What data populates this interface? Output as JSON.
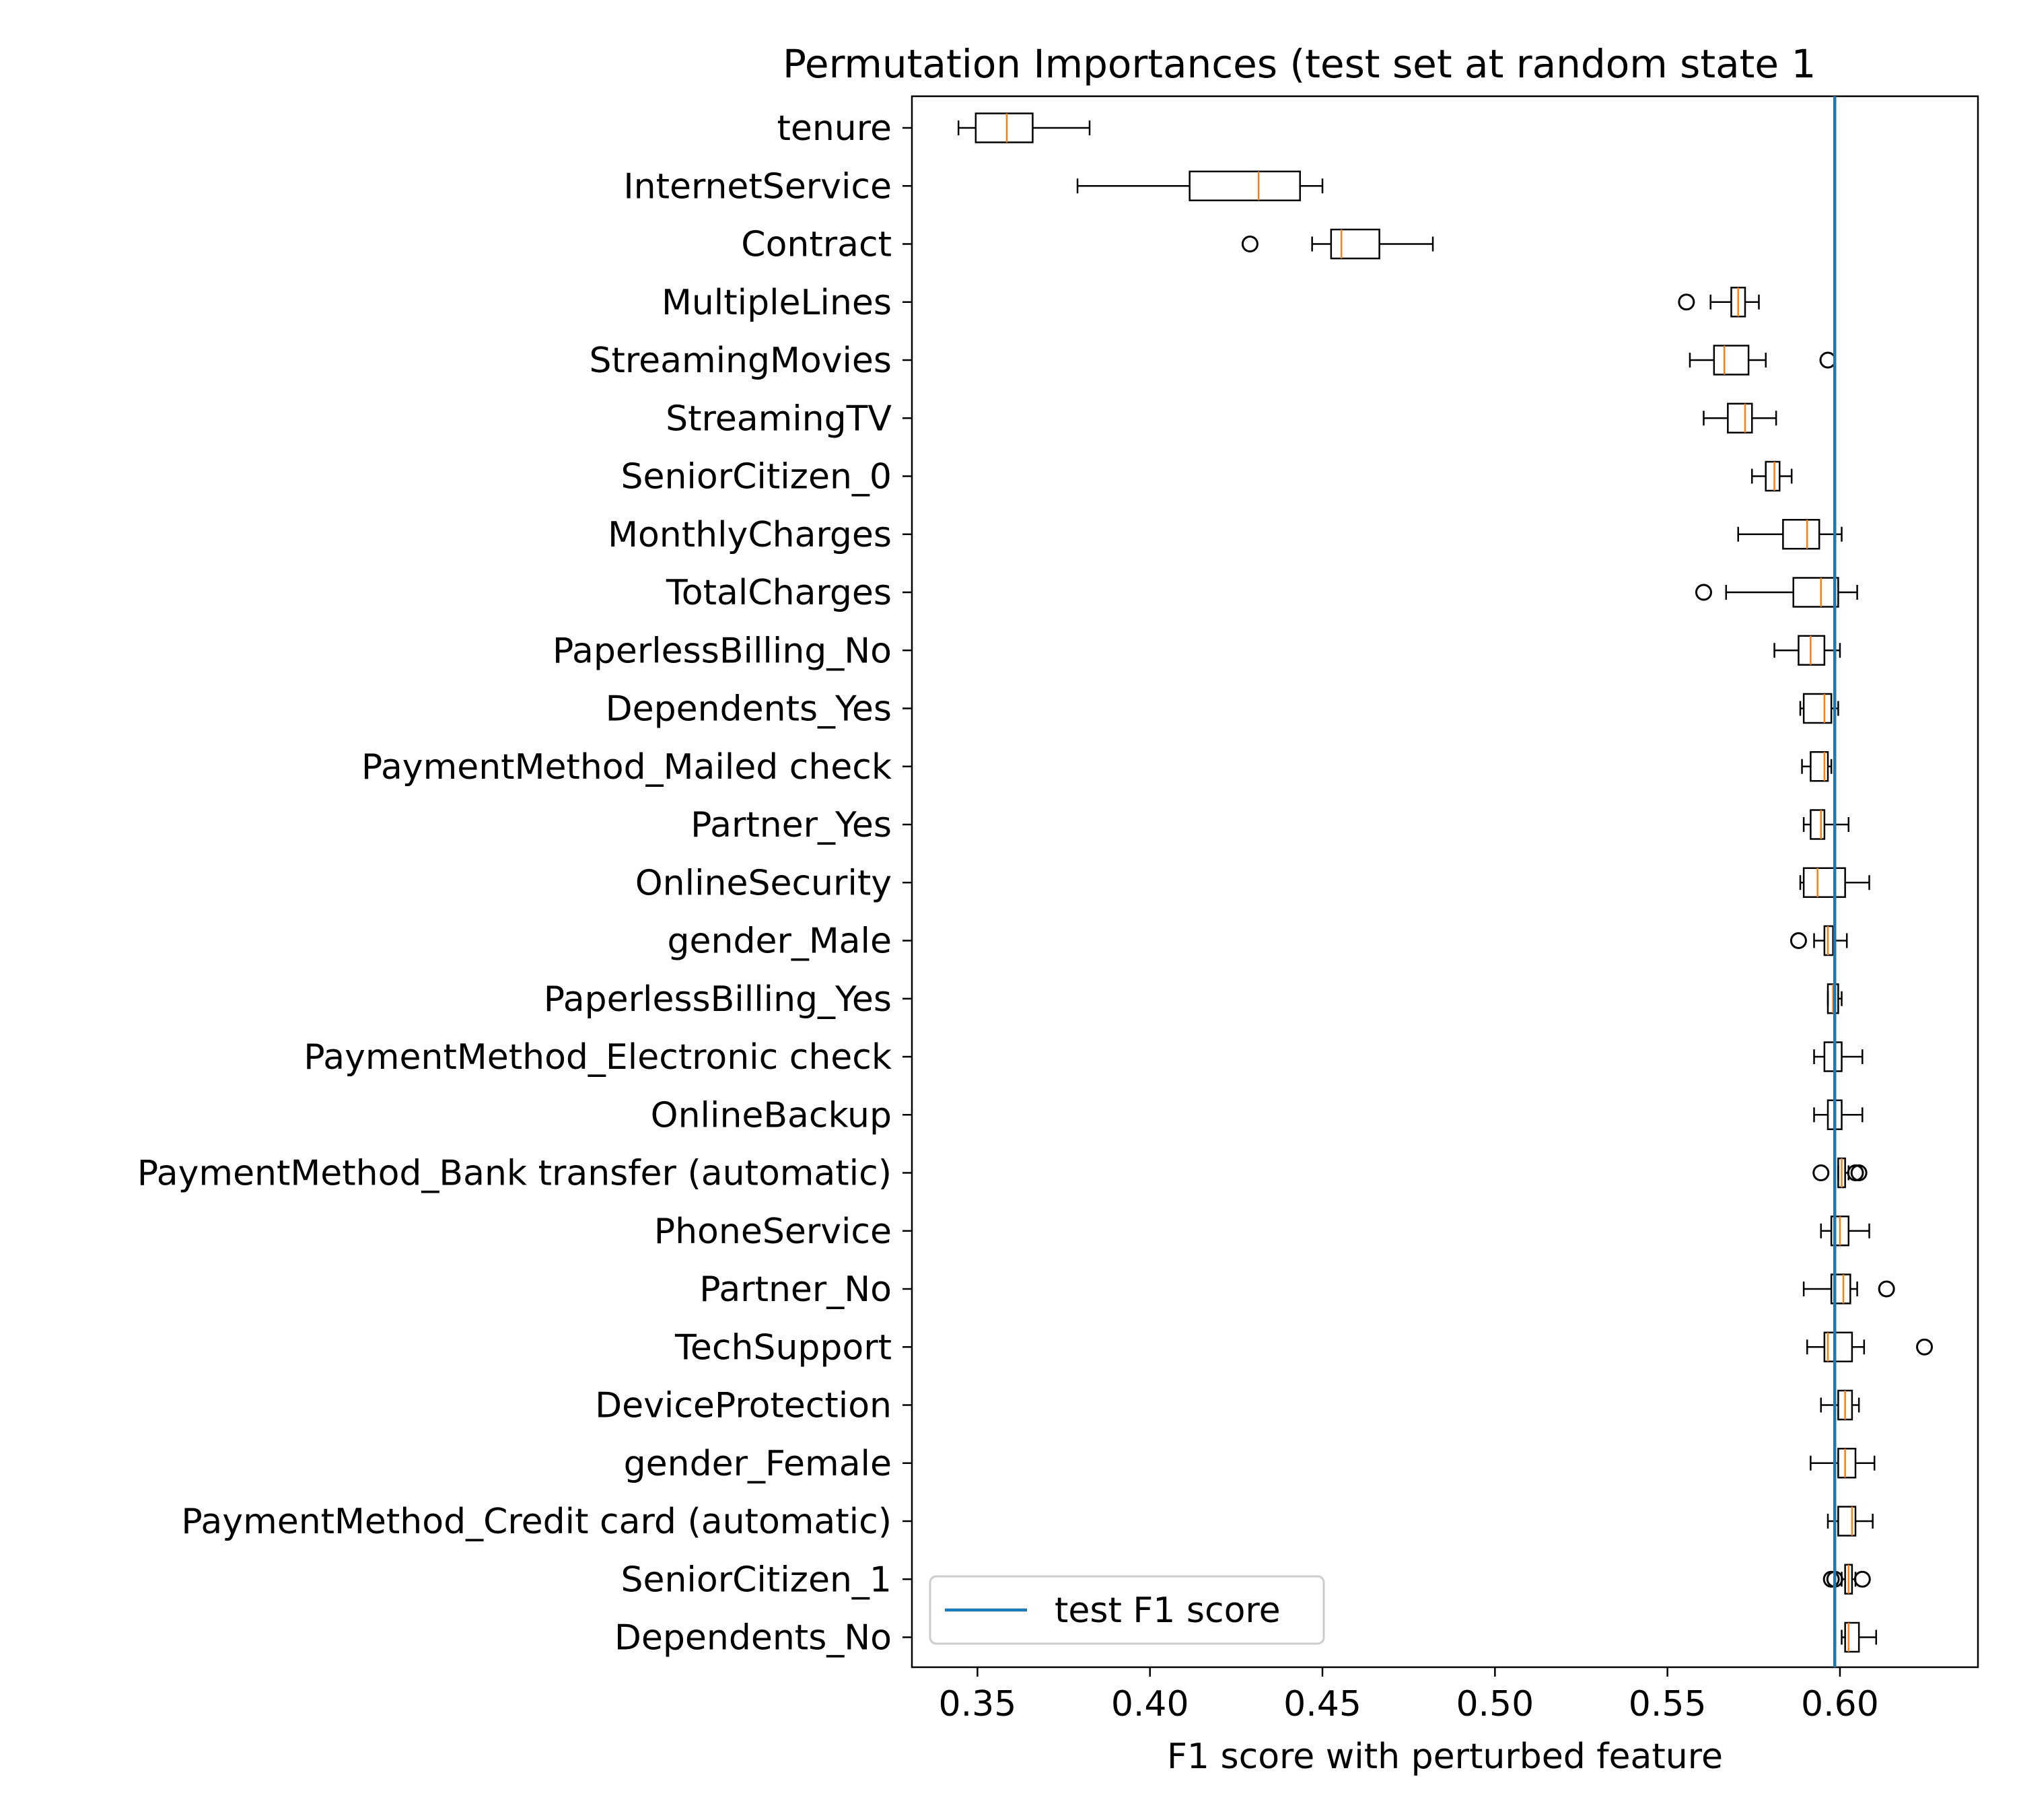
{
  "chart_data": {
    "type": "boxplot",
    "title": "Permutation Importances (test set at random state 1",
    "xlabel": "F1 score with perturbed feature",
    "ylabel": "",
    "xlim": [
      0.331,
      0.64
    ],
    "xticks": [
      0.35,
      0.4,
      0.45,
      0.5,
      0.55,
      0.6
    ],
    "xtick_labels": [
      "0.35",
      "0.40",
      "0.45",
      "0.50",
      "0.55",
      "0.60"
    ],
    "grid": false,
    "legend": {
      "position": "lower-left",
      "entries": [
        {
          "label": "test F1 score",
          "color": "#1f77b4"
        }
      ]
    },
    "reference_line": {
      "label": "test F1 score",
      "x": 0.5985,
      "color": "#1f77b4"
    },
    "colors": {
      "box": "#000000",
      "median": "#ff7f0e",
      "reference": "#1f77b4"
    },
    "features": [
      {
        "name": "tenure",
        "whisker_low": 0.3445,
        "q1": 0.3495,
        "median": 0.3585,
        "q3": 0.366,
        "whisker_high": 0.3825,
        "outliers": []
      },
      {
        "name": "InternetService",
        "whisker_low": 0.379,
        "q1": 0.4115,
        "median": 0.4315,
        "q3": 0.4435,
        "whisker_high": 0.45,
        "outliers": []
      },
      {
        "name": "Contract",
        "whisker_low": 0.447,
        "q1": 0.4525,
        "median": 0.4555,
        "q3": 0.4665,
        "whisker_high": 0.482,
        "outliers": [
          0.429
        ]
      },
      {
        "name": "MultipleLines",
        "whisker_low": 0.5625,
        "q1": 0.5685,
        "median": 0.5705,
        "q3": 0.5725,
        "whisker_high": 0.5765,
        "outliers": [
          0.5555
        ]
      },
      {
        "name": "StreamingMovies",
        "whisker_low": 0.5565,
        "q1": 0.5635,
        "median": 0.5665,
        "q3": 0.5735,
        "whisker_high": 0.5785,
        "outliers": [
          0.5965
        ]
      },
      {
        "name": "StreamingTV",
        "whisker_low": 0.5605,
        "q1": 0.5675,
        "median": 0.5725,
        "q3": 0.5745,
        "whisker_high": 0.5815,
        "outliers": []
      },
      {
        "name": "SeniorCitizen_0",
        "whisker_low": 0.5745,
        "q1": 0.5785,
        "median": 0.581,
        "q3": 0.5825,
        "whisker_high": 0.586,
        "outliers": []
      },
      {
        "name": "MonthlyCharges",
        "whisker_low": 0.5705,
        "q1": 0.5835,
        "median": 0.5905,
        "q3": 0.594,
        "whisker_high": 0.6005,
        "outliers": []
      },
      {
        "name": "TotalCharges",
        "whisker_low": 0.567,
        "q1": 0.5865,
        "median": 0.5945,
        "q3": 0.5995,
        "whisker_high": 0.605,
        "outliers": [
          0.5605
        ]
      },
      {
        "name": "PaperlessBilling_No",
        "whisker_low": 0.581,
        "q1": 0.588,
        "median": 0.5915,
        "q3": 0.5955,
        "whisker_high": 0.6,
        "outliers": []
      },
      {
        "name": "Dependents_Yes",
        "whisker_low": 0.5885,
        "q1": 0.5895,
        "median": 0.5955,
        "q3": 0.5975,
        "whisker_high": 0.5995,
        "outliers": []
      },
      {
        "name": "PaymentMethod_Mailed check",
        "whisker_low": 0.589,
        "q1": 0.5915,
        "median": 0.5955,
        "q3": 0.5965,
        "whisker_high": 0.5975,
        "outliers": []
      },
      {
        "name": "Partner_Yes",
        "whisker_low": 0.5895,
        "q1": 0.5915,
        "median": 0.5945,
        "q3": 0.5955,
        "whisker_high": 0.6025,
        "outliers": []
      },
      {
        "name": "OnlineSecurity",
        "whisker_low": 0.5885,
        "q1": 0.5895,
        "median": 0.5935,
        "q3": 0.6015,
        "whisker_high": 0.6085,
        "outliers": []
      },
      {
        "name": "gender_Male",
        "whisker_low": 0.5925,
        "q1": 0.5955,
        "median": 0.5965,
        "q3": 0.598,
        "whisker_high": 0.602,
        "outliers": [
          0.588
        ]
      },
      {
        "name": "PaperlessBilling_Yes",
        "whisker_low": 0.5965,
        "q1": 0.5965,
        "median": 0.598,
        "q3": 0.5995,
        "whisker_high": 0.6005,
        "outliers": []
      },
      {
        "name": "PaymentMethod_Electronic check",
        "whisker_low": 0.5925,
        "q1": 0.5955,
        "median": 0.5985,
        "q3": 0.6005,
        "whisker_high": 0.6065,
        "outliers": []
      },
      {
        "name": "OnlineBackup",
        "whisker_low": 0.5925,
        "q1": 0.5965,
        "median": 0.5985,
        "q3": 0.6005,
        "whisker_high": 0.6065,
        "outliers": []
      },
      {
        "name": "PaymentMethod_Bank transfer (automatic)",
        "whisker_low": 0.5995,
        "q1": 0.5995,
        "median": 0.6005,
        "q3": 0.6015,
        "whisker_high": 0.6025,
        "outliers": [
          0.5945,
          0.6045,
          0.6055
        ]
      },
      {
        "name": "PhoneService",
        "whisker_low": 0.5945,
        "q1": 0.5975,
        "median": 0.6,
        "q3": 0.6025,
        "whisker_high": 0.6085,
        "outliers": []
      },
      {
        "name": "Partner_No",
        "whisker_low": 0.5895,
        "q1": 0.5975,
        "median": 0.601,
        "q3": 0.603,
        "whisker_high": 0.605,
        "outliers": [
          0.6135
        ]
      },
      {
        "name": "TechSupport",
        "whisker_low": 0.5905,
        "q1": 0.5955,
        "median": 0.5965,
        "q3": 0.6035,
        "whisker_high": 0.607,
        "outliers": [
          0.6245
        ]
      },
      {
        "name": "DeviceProtection",
        "whisker_low": 0.5945,
        "q1": 0.5995,
        "median": 0.6015,
        "q3": 0.6035,
        "whisker_high": 0.6055,
        "outliers": []
      },
      {
        "name": "gender_Female",
        "whisker_low": 0.5915,
        "q1": 0.5995,
        "median": 0.6015,
        "q3": 0.6045,
        "whisker_high": 0.61,
        "outliers": []
      },
      {
        "name": "PaymentMethod_Credit card (automatic)",
        "whisker_low": 0.5965,
        "q1": 0.5995,
        "median": 0.6035,
        "q3": 0.6045,
        "whisker_high": 0.6095,
        "outliers": []
      },
      {
        "name": "SeniorCitizen_1",
        "whisker_low": 0.6005,
        "q1": 0.6015,
        "median": 0.6025,
        "q3": 0.6035,
        "whisker_high": 0.6045,
        "outliers": [
          0.5975,
          0.5985,
          0.6065
        ]
      },
      {
        "name": "Dependents_No",
        "whisker_low": 0.6005,
        "q1": 0.6015,
        "median": 0.6025,
        "q3": 0.6055,
        "whisker_high": 0.6105,
        "outliers": []
      }
    ]
  }
}
